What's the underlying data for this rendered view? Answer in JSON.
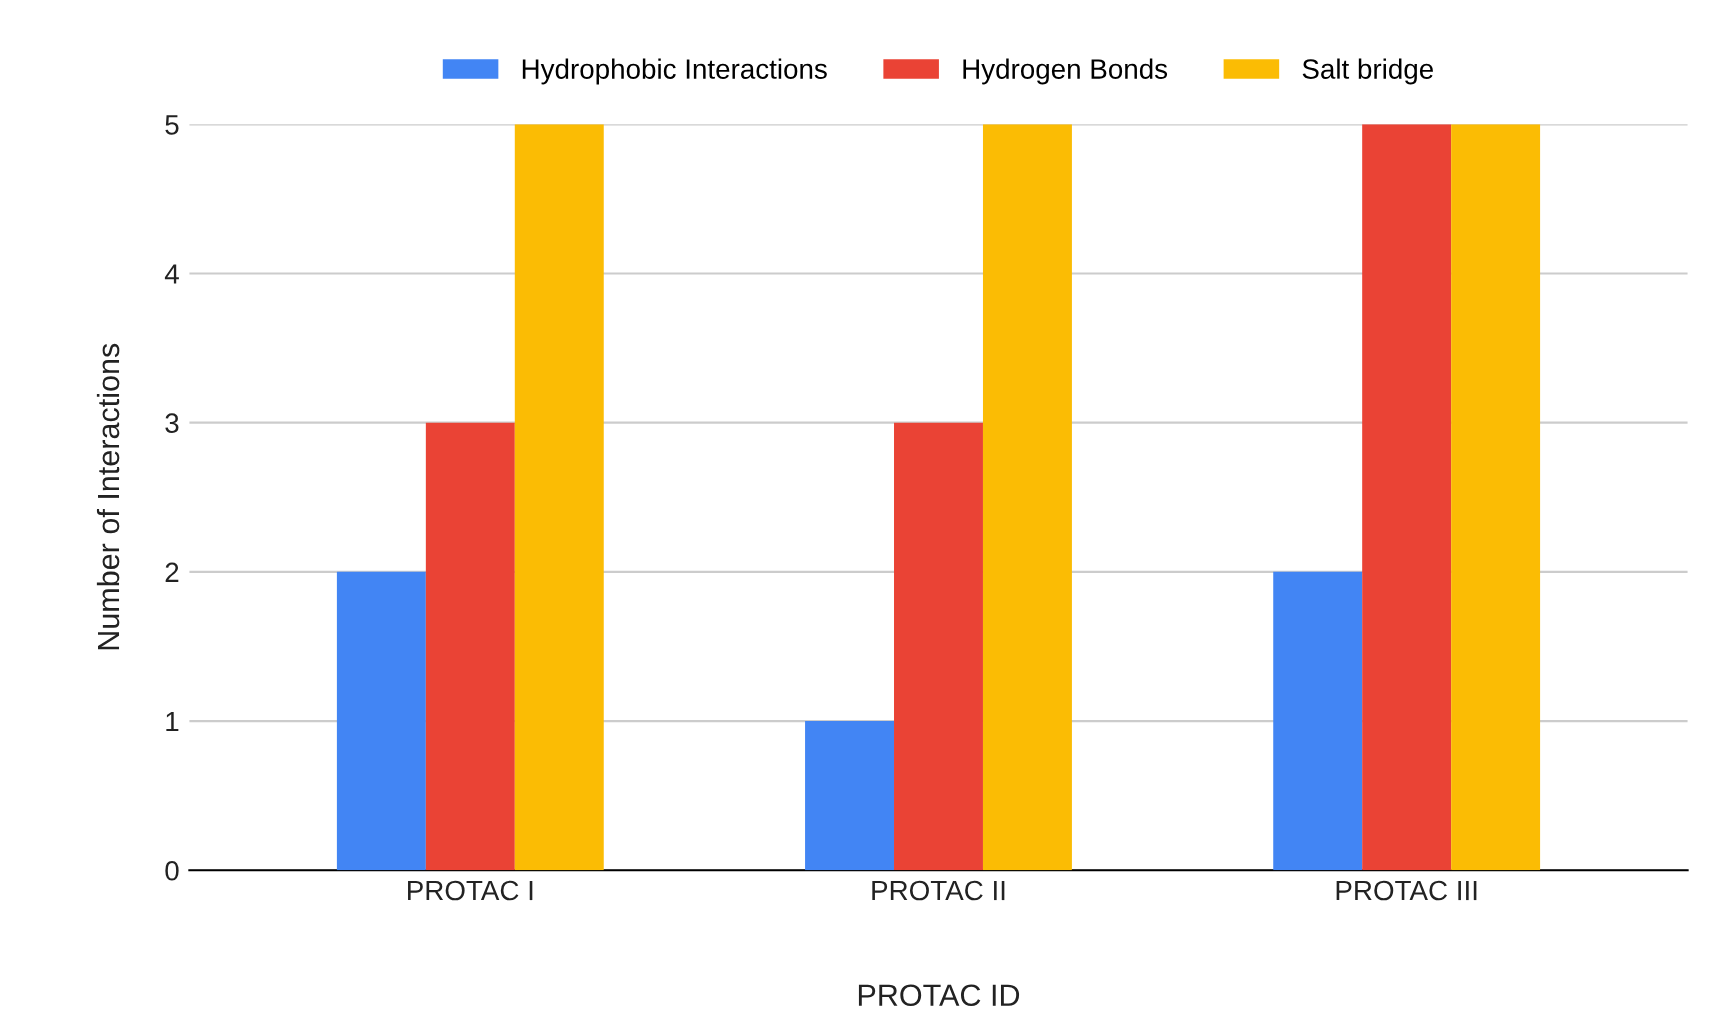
{
  "chart_data": {
    "type": "bar",
    "xlabel": "PROTAC ID",
    "ylabel": "Number of Interactions",
    "categories": [
      "PROTAC I",
      "PROTAC II",
      "PROTAC III"
    ],
    "series": [
      {
        "name": "Hydrophobic Interactions",
        "color": "#4285f4",
        "values": [
          2,
          1,
          2
        ]
      },
      {
        "name": "Hydrogen Bonds",
        "color": "#ea4335",
        "values": [
          3,
          3,
          5
        ]
      },
      {
        "name": "Salt bridge",
        "color": "#fbbc04",
        "values": [
          5,
          5,
          5
        ]
      }
    ],
    "ylim": [
      0,
      5
    ],
    "yticks": [
      0,
      1,
      2,
      3,
      4,
      5
    ],
    "grid": "y",
    "legend": "top"
  }
}
